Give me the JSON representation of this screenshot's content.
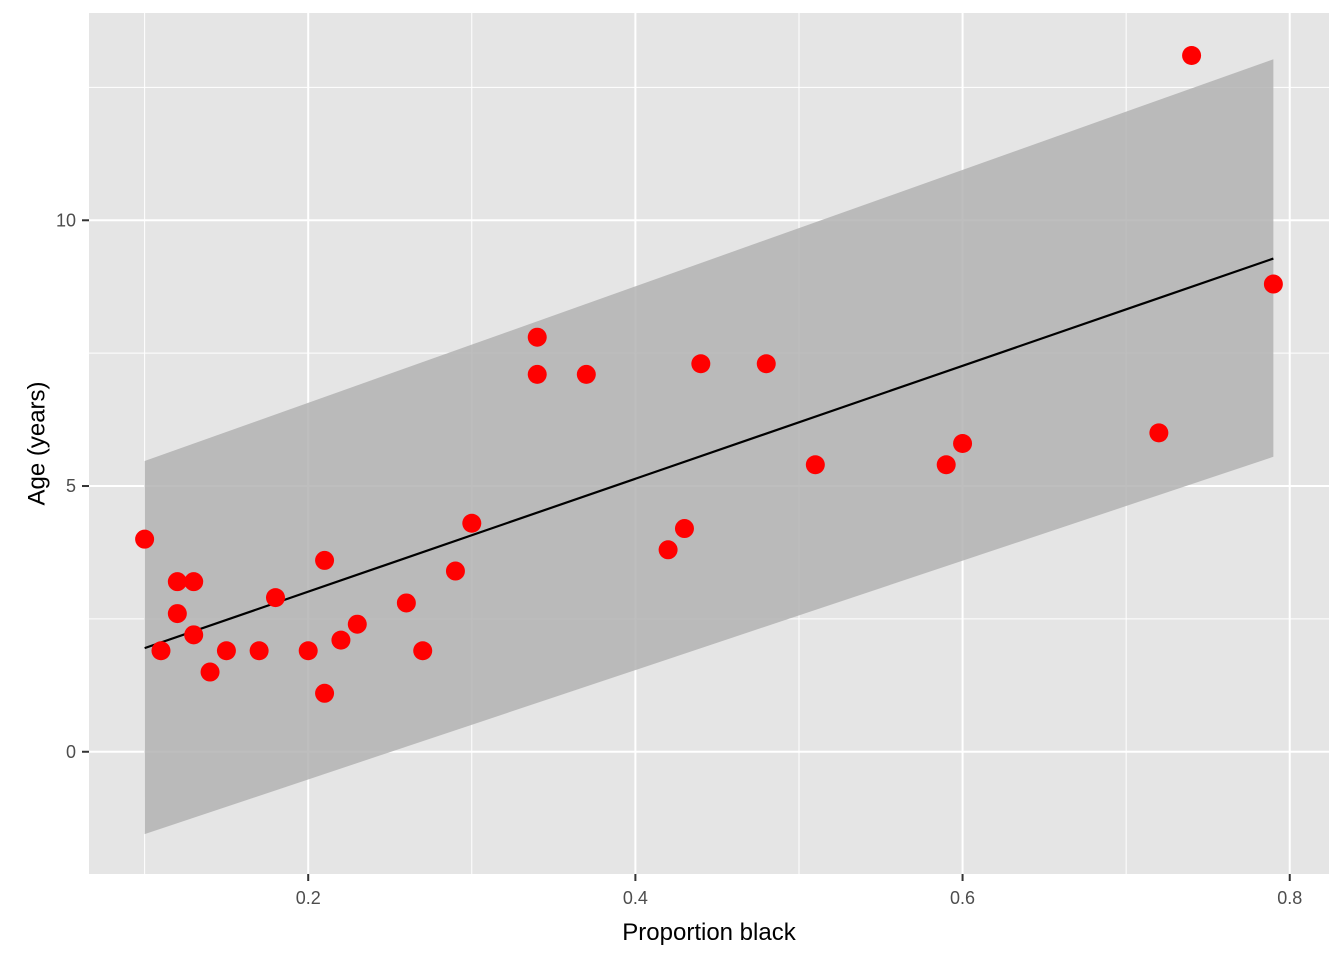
{
  "chart_data": {
    "type": "scatter",
    "title": "",
    "xlabel": "Proportion black",
    "ylabel": "Age (years)",
    "xlim": [
      0.066,
      0.824
    ],
    "ylim": [
      -2.3,
      13.9
    ],
    "x_ticks": [
      0.2,
      0.4,
      0.6,
      0.8
    ],
    "x_tick_labels": [
      "0.2",
      "0.4",
      "0.6",
      "0.8"
    ],
    "y_ticks": [
      0,
      5,
      10
    ],
    "y_tick_labels": [
      "0",
      "5",
      "10"
    ],
    "grid": true,
    "legend": "none",
    "colors": {
      "panel_background": "#e5e5e5",
      "grid_major": "#ffffff",
      "points": "#ff0000",
      "fit_line": "#000000",
      "prediction_band": "#b3b3b3"
    },
    "series": [
      {
        "type": "scatter",
        "points": [
          {
            "x": 0.1,
            "y": 4.0
          },
          {
            "x": 0.11,
            "y": 1.9
          },
          {
            "x": 0.12,
            "y": 3.2
          },
          {
            "x": 0.12,
            "y": 2.6
          },
          {
            "x": 0.13,
            "y": 3.2
          },
          {
            "x": 0.13,
            "y": 2.2
          },
          {
            "x": 0.14,
            "y": 1.5
          },
          {
            "x": 0.15,
            "y": 1.9
          },
          {
            "x": 0.17,
            "y": 1.9
          },
          {
            "x": 0.18,
            "y": 2.9
          },
          {
            "x": 0.2,
            "y": 1.9
          },
          {
            "x": 0.21,
            "y": 3.6
          },
          {
            "x": 0.21,
            "y": 1.1
          },
          {
            "x": 0.22,
            "y": 2.1
          },
          {
            "x": 0.23,
            "y": 2.4
          },
          {
            "x": 0.26,
            "y": 2.8
          },
          {
            "x": 0.27,
            "y": 1.9
          },
          {
            "x": 0.29,
            "y": 3.4
          },
          {
            "x": 0.3,
            "y": 4.3
          },
          {
            "x": 0.34,
            "y": 7.8
          },
          {
            "x": 0.34,
            "y": 7.1
          },
          {
            "x": 0.37,
            "y": 7.1
          },
          {
            "x": 0.42,
            "y": 3.8
          },
          {
            "x": 0.43,
            "y": 4.2
          },
          {
            "x": 0.44,
            "y": 7.3
          },
          {
            "x": 0.48,
            "y": 7.3
          },
          {
            "x": 0.51,
            "y": 5.4
          },
          {
            "x": 0.59,
            "y": 5.4
          },
          {
            "x": 0.6,
            "y": 5.8
          },
          {
            "x": 0.72,
            "y": 6.0
          },
          {
            "x": 0.74,
            "y": 13.1
          },
          {
            "x": 0.79,
            "y": 8.8
          }
        ]
      },
      {
        "type": "line",
        "x": [
          0.1,
          0.79
        ],
        "y": [
          1.95,
          9.28
        ]
      },
      {
        "type": "band",
        "x": [
          0.1,
          0.79
        ],
        "lower": [
          -1.55,
          5.55
        ],
        "upper": [
          5.47,
          13.03
        ]
      }
    ]
  }
}
